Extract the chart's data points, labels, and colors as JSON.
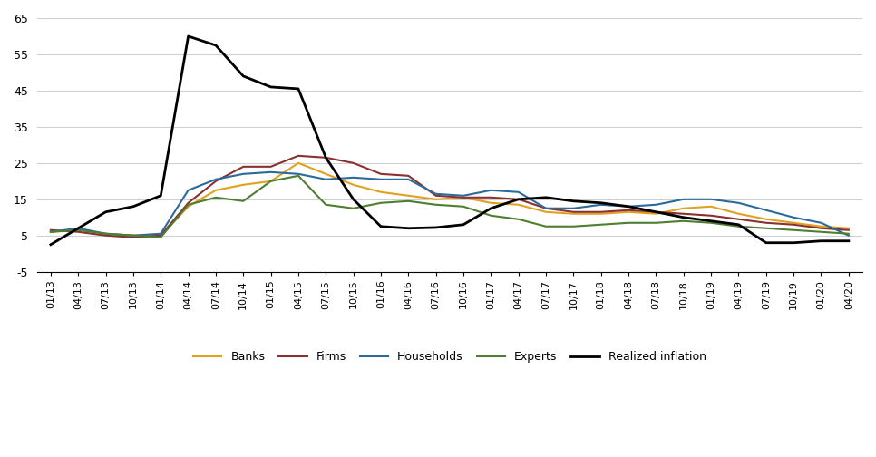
{
  "title": "",
  "x_labels": [
    "01/13",
    "04/13",
    "07/13",
    "10/13",
    "01/14",
    "04/14",
    "07/14",
    "10/14",
    "01/15",
    "04/15",
    "07/15",
    "10/15",
    "01/16",
    "04/16",
    "07/16",
    "10/16",
    "01/17",
    "04/17",
    "07/17",
    "10/17",
    "01/18",
    "04/18",
    "07/18",
    "10/18",
    "01/19",
    "04/19",
    "07/19",
    "10/19",
    "01/20",
    "04/20"
  ],
  "ylim": [
    -5,
    65
  ],
  "yticks": [
    -5,
    5,
    15,
    25,
    35,
    45,
    55,
    65
  ],
  "ytick_labels": [
    "-5",
    "5",
    "15",
    "25",
    "35",
    "45",
    "55",
    "65"
  ],
  "banks": [
    6.0,
    6.5,
    5.5,
    5.0,
    5.0,
    13.0,
    17.5,
    19.0,
    20.0,
    25.0,
    22.0,
    19.0,
    17.0,
    16.0,
    15.0,
    15.5,
    14.0,
    13.5,
    11.5,
    11.0,
    11.0,
    11.5,
    11.0,
    12.5,
    13.0,
    11.0,
    9.5,
    8.5,
    7.5,
    7.0
  ],
  "firms": [
    6.5,
    6.0,
    5.0,
    4.5,
    5.0,
    14.0,
    20.0,
    24.0,
    24.0,
    27.0,
    26.5,
    25.0,
    22.0,
    21.5,
    16.0,
    15.5,
    15.5,
    15.0,
    12.5,
    11.5,
    11.5,
    12.0,
    11.5,
    11.0,
    10.5,
    9.5,
    8.5,
    8.0,
    7.0,
    6.5
  ],
  "households": [
    6.0,
    7.0,
    5.5,
    5.0,
    5.5,
    17.5,
    20.5,
    22.0,
    22.5,
    22.0,
    20.5,
    21.0,
    20.5,
    20.5,
    16.5,
    16.0,
    17.5,
    17.0,
    12.5,
    12.5,
    13.5,
    13.0,
    13.5,
    15.0,
    15.0,
    14.0,
    12.0,
    10.0,
    8.5,
    5.0
  ],
  "experts": [
    6.0,
    6.5,
    5.5,
    5.0,
    4.5,
    13.5,
    15.5,
    14.5,
    20.0,
    21.5,
    13.5,
    12.5,
    14.0,
    14.5,
    13.5,
    13.0,
    10.5,
    9.5,
    7.5,
    7.5,
    8.0,
    8.5,
    8.5,
    9.0,
    8.5,
    7.5,
    7.0,
    6.5,
    6.0,
    5.5
  ],
  "realized": [
    2.5,
    7.0,
    11.5,
    13.0,
    16.0,
    60.0,
    57.5,
    49.0,
    46.0,
    45.5,
    26.5,
    15.0,
    7.5,
    7.0,
    7.2,
    8.0,
    12.5,
    15.0,
    15.5,
    14.5,
    14.0,
    13.0,
    11.5,
    10.0,
    9.0,
    8.0,
    3.0,
    3.0,
    3.5,
    3.5
  ],
  "banks_color": "#E2A020",
  "firms_color": "#8B3030",
  "households_color": "#2B6A9A",
  "experts_color": "#4E7E30",
  "realized_color": "#000000",
  "legend_labels": [
    "Banks",
    "Firms",
    "Households",
    "Experts",
    "Realized inflation"
  ],
  "background_color": "#ffffff",
  "grid_color": "#d0d0d0"
}
